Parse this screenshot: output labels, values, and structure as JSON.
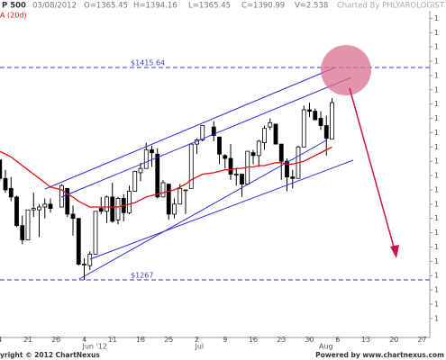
{
  "chart_data": {
    "type": "candlestick",
    "title": "P 500",
    "header": [
      "03/08/2012",
      "O=1365.45",
      "H=1394.16",
      "L=1365.45",
      "C=1390.99",
      "V=2.538"
    ],
    "credit": "Charted By PHLYAROLOGIST",
    "ma_label": "A (20d)",
    "ma_color": "#e01010",
    "footer_left": "yright © 2012 ChartNexus",
    "footer_right": "Powered by www.chartnexus.com",
    "x": [
      "2012-05-14",
      "2012-05-15",
      "2012-05-16",
      "2012-05-17",
      "2012-05-18",
      "2012-05-21",
      "2012-05-22",
      "2012-05-23",
      "2012-05-24",
      "2012-05-25",
      "2012-05-29",
      "2012-05-30",
      "2012-05-31",
      "2012-06-01",
      "2012-06-04",
      "2012-06-05",
      "2012-06-06",
      "2012-06-07",
      "2012-06-08",
      "2012-06-11",
      "2012-06-12",
      "2012-06-13",
      "2012-06-14",
      "2012-06-15",
      "2012-06-18",
      "2012-06-19",
      "2012-06-20",
      "2012-06-21",
      "2012-06-22",
      "2012-06-25",
      "2012-06-26",
      "2012-06-27",
      "2012-06-28",
      "2012-06-29",
      "2012-07-02",
      "2012-07-03",
      "2012-07-05",
      "2012-07-06",
      "2012-07-09",
      "2012-07-10",
      "2012-07-11",
      "2012-07-12",
      "2012-07-13",
      "2012-07-16",
      "2012-07-17",
      "2012-07-18",
      "2012-07-19",
      "2012-07-20",
      "2012-07-23",
      "2012-07-24",
      "2012-07-25",
      "2012-07-26",
      "2012-07-27",
      "2012-07-30",
      "2012-07-31",
      "2012-08-01",
      "2012-08-02",
      "2012-08-03"
    ],
    "open": [
      1351,
      1338,
      1331,
      1325,
      1305,
      1295,
      1316,
      1316,
      1318,
      1320,
      1318,
      1331,
      1313,
      1310,
      1278,
      1277,
      1285,
      1317,
      1315,
      1325,
      1309,
      1324,
      1314,
      1329,
      1342,
      1345,
      1358,
      1355,
      1325,
      1334,
      1313,
      1320,
      1330,
      1331,
      1362,
      1365,
      1374,
      1367,
      1354,
      1352,
      1341,
      1341,
      1334,
      1356,
      1354,
      1363,
      1374,
      1376,
      1362,
      1350,
      1339,
      1338,
      1360,
      1386,
      1385,
      1380,
      1375,
      1365.45
    ],
    "high": [
      1351,
      1344,
      1339,
      1326,
      1312,
      1316,
      1328,
      1320,
      1324,
      1324,
      1334,
      1331,
      1319,
      1310,
      1282,
      1287,
      1315,
      1325,
      1326,
      1335,
      1325,
      1327,
      1333,
      1343,
      1349,
      1363,
      1361,
      1359,
      1337,
      1334,
      1324,
      1334,
      1330,
      1362,
      1366,
      1375,
      1378,
      1367,
      1355,
      1362,
      1345,
      1341,
      1357,
      1358,
      1365,
      1375,
      1380,
      1376,
      1362,
      1352,
      1344,
      1361,
      1389,
      1391,
      1387,
      1385,
      1382,
      1394.16
    ],
    "low": [
      1336,
      1328,
      1322,
      1304,
      1292,
      1295,
      1311,
      1297,
      1310,
      1314,
      1318,
      1311,
      1298,
      1277,
      1267,
      1274,
      1285,
      1313,
      1307,
      1307,
      1306,
      1308,
      1313,
      1329,
      1336,
      1345,
      1346,
      1324,
      1325,
      1309,
      1310,
      1320,
      1313,
      1331,
      1355,
      1364,
      1364,
      1348,
      1345,
      1337,
      1333,
      1325,
      1334,
      1348,
      1346,
      1358,
      1372,
      1362,
      1337,
      1329,
      1331,
      1338,
      1360,
      1381,
      1379,
      1372,
      1354,
      1365.45
    ],
    "close": [
      1338,
      1330,
      1325,
      1305,
      1295,
      1316,
      1317,
      1318,
      1320,
      1317,
      1333,
      1313,
      1310,
      1278,
      1278,
      1285,
      1315,
      1315,
      1325,
      1308,
      1324,
      1314,
      1329,
      1343,
      1345,
      1358,
      1356,
      1325,
      1335,
      1313,
      1320,
      1331,
      1330,
      1362,
      1365,
      1375,
      1368,
      1355,
      1352,
      1341,
      1341,
      1334,
      1357,
      1354,
      1364,
      1373,
      1377,
      1362,
      1350,
      1339,
      1338,
      1360,
      1386,
      1385,
      1379,
      1375,
      1366,
      1390.99
    ],
    "ma": [
      1357,
      1355,
      1353,
      1350,
      1347,
      1344,
      1341,
      1338,
      1335,
      1332,
      1330,
      1327,
      1325,
      1322,
      1320,
      1318,
      1318,
      1318,
      1318,
      1318,
      1318,
      1319,
      1320,
      1321,
      1323,
      1325,
      1326,
      1327,
      1328,
      1329,
      1330,
      1332,
      1334,
      1337,
      1339,
      1341,
      1342,
      1343,
      1344,
      1344,
      1345,
      1345,
      1346,
      1346,
      1347,
      1347,
      1348,
      1349,
      1349,
      1348,
      1348,
      1349,
      1350,
      1352,
      1354,
      1356,
      1358,
      1360
    ],
    "ylim": [
      1226.7,
      1451.5
    ],
    "yticks": [
      {
        "value": 1240,
        "label": "1"
      },
      {
        "value": 1250,
        "label": "1"
      },
      {
        "value": 1260,
        "label": "1"
      },
      {
        "value": 1270,
        "label": "1"
      },
      {
        "value": 1280,
        "label": "1"
      },
      {
        "value": 1290,
        "label": "1"
      },
      {
        "value": 1300,
        "label": "1"
      },
      {
        "value": 1310,
        "label": "1"
      },
      {
        "value": 1320,
        "label": "1"
      },
      {
        "value": 1330,
        "label": "1"
      },
      {
        "value": 1340,
        "label": "1"
      },
      {
        "value": 1350,
        "label": "1"
      },
      {
        "value": 1360,
        "label": "1"
      },
      {
        "value": 1370,
        "label": "1"
      },
      {
        "value": 1380,
        "label": "1"
      },
      {
        "value": 1390,
        "label": "1"
      },
      {
        "value": 1400,
        "label": "1"
      },
      {
        "value": 1410,
        "label": "1"
      },
      {
        "value": 1420,
        "label": "1"
      },
      {
        "value": 1430,
        "label": "1"
      },
      {
        "value": 1440,
        "label": "1"
      },
      {
        "value": 1450,
        "label": "1"
      }
    ],
    "xticks": [
      {
        "value": "2012-05-14",
        "label": "4"
      },
      {
        "value": "2012-05-21",
        "label": "21"
      },
      {
        "value": "2012-05-28",
        "label": "28"
      },
      {
        "value": "2012-06-04",
        "label": "4"
      },
      {
        "value": "2012-06-11",
        "label": "11"
      },
      {
        "value": "2012-06-18",
        "label": "18"
      },
      {
        "value": "2012-06-25",
        "label": "25"
      },
      {
        "value": "2012-07-02",
        "label": "2"
      },
      {
        "value": "2012-07-09",
        "label": "9"
      },
      {
        "value": "2012-07-16",
        "label": "16"
      },
      {
        "value": "2012-07-23",
        "label": "23"
      },
      {
        "value": "2012-07-30",
        "label": "30"
      },
      {
        "value": "2012-08-06",
        "label": "6"
      },
      {
        "value": "2012-08-13",
        "label": "13"
      },
      {
        "value": "2012-08-20",
        "label": "20"
      },
      {
        "value": "2012-08-27",
        "label": "27"
      }
    ],
    "month_ticks": [
      {
        "value": "2012-06-04",
        "label": "Jun '12"
      },
      {
        "value": "2012-07-02",
        "label": "Jul"
      },
      {
        "value": "2012-08-01",
        "label": "Aug"
      }
    ],
    "levels": [
      {
        "label": "$1415.64",
        "value": 1415.64
      },
      {
        "label": "$1267",
        "value": 1267
      }
    ]
  }
}
